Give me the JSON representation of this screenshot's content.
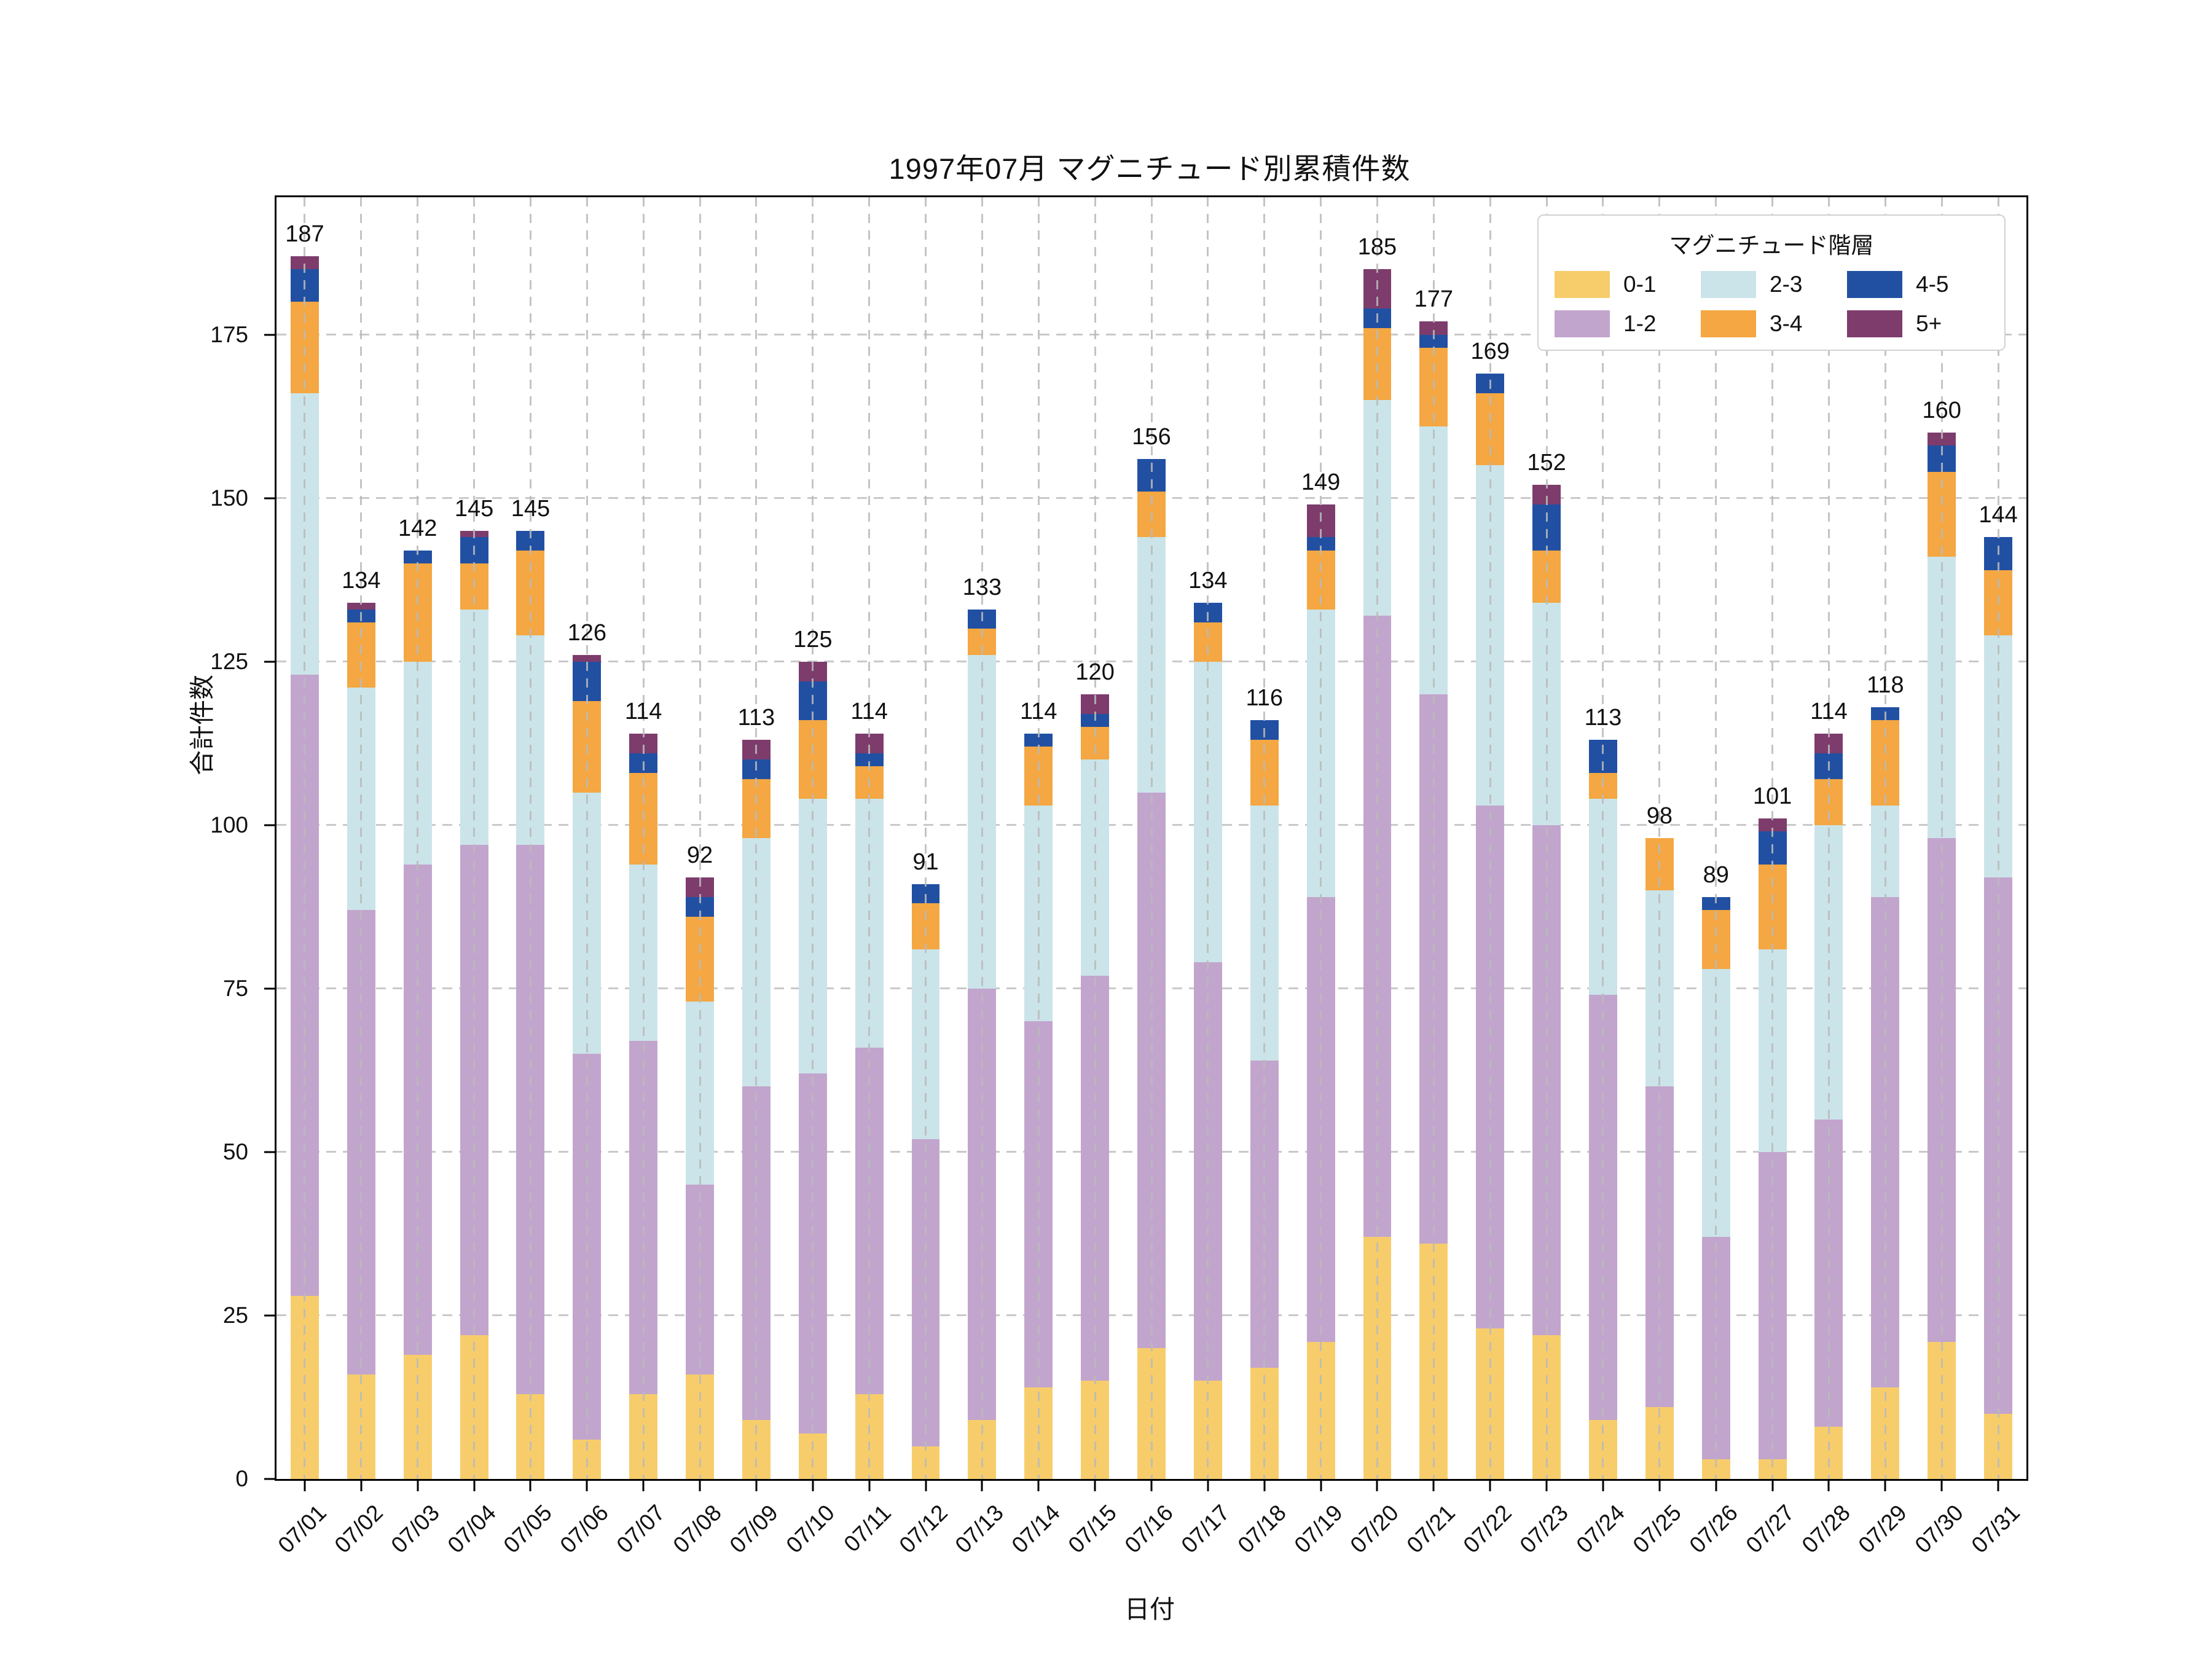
{
  "title": "1997年07月 マグニチュード別累積件数",
  "chart_data": {
    "type": "bar",
    "stacked": true,
    "title": "1997年07月 マグニチュード別累積件数",
    "xlabel": "日付",
    "ylabel": "合計件数",
    "ylim": [
      0,
      196
    ],
    "yticks": [
      0,
      25,
      50,
      75,
      100,
      125,
      150,
      175
    ],
    "grid": true,
    "legend_title": "マグニチュード階層",
    "legend_position": "upper right",
    "categories": [
      "07/01",
      "07/02",
      "07/03",
      "07/04",
      "07/05",
      "07/06",
      "07/07",
      "07/08",
      "07/09",
      "07/10",
      "07/11",
      "07/12",
      "07/13",
      "07/14",
      "07/15",
      "07/16",
      "07/17",
      "07/18",
      "07/19",
      "07/20",
      "07/21",
      "07/22",
      "07/23",
      "07/24",
      "07/25",
      "07/26",
      "07/27",
      "07/28",
      "07/29",
      "07/30",
      "07/31"
    ],
    "totals": [
      187,
      134,
      142,
      145,
      145,
      126,
      114,
      92,
      113,
      125,
      114,
      91,
      133,
      114,
      120,
      156,
      134,
      116,
      149,
      185,
      177,
      169,
      152,
      113,
      98,
      89,
      101,
      114,
      118,
      160,
      144
    ],
    "series": [
      {
        "name": "0-1",
        "color": "#F7CD6B",
        "values": [
          28,
          16,
          19,
          22,
          13,
          6,
          13,
          16,
          9,
          7,
          13,
          5,
          9,
          14,
          15,
          20,
          15,
          17,
          21,
          37,
          36,
          23,
          22,
          9,
          11,
          3,
          3,
          8,
          14,
          21,
          10
        ]
      },
      {
        "name": "1-2",
        "color": "#C2A5CD",
        "values": [
          95,
          71,
          75,
          75,
          84,
          59,
          54,
          29,
          51,
          55,
          53,
          47,
          66,
          56,
          62,
          85,
          64,
          47,
          68,
          95,
          84,
          80,
          78,
          65,
          49,
          34,
          47,
          47,
          75,
          77,
          82
        ]
      },
      {
        "name": "2-3",
        "color": "#CBE4E9",
        "values": [
          43,
          34,
          31,
          36,
          32,
          40,
          27,
          28,
          38,
          42,
          38,
          29,
          51,
          33,
          33,
          39,
          46,
          39,
          44,
          33,
          41,
          52,
          34,
          30,
          30,
          41,
          31,
          45,
          14,
          43,
          37
        ]
      },
      {
        "name": "3-4",
        "color": "#F4A742",
        "values": [
          14,
          10,
          15,
          7,
          13,
          14,
          14,
          13,
          9,
          12,
          5,
          7,
          4,
          9,
          5,
          7,
          6,
          10,
          9,
          11,
          12,
          11,
          8,
          4,
          8,
          9,
          13,
          7,
          13,
          13,
          10
        ]
      },
      {
        "name": "4-5",
        "color": "#2150A3",
        "values": [
          5,
          2,
          2,
          4,
          3,
          6,
          3,
          3,
          3,
          6,
          2,
          3,
          3,
          2,
          2,
          5,
          3,
          3,
          2,
          3,
          2,
          3,
          7,
          5,
          0,
          2,
          5,
          4,
          2,
          4,
          5
        ]
      },
      {
        "name": "5+",
        "color": "#7D3C6C",
        "values": [
          2,
          1,
          0,
          1,
          0,
          1,
          3,
          3,
          3,
          3,
          3,
          0,
          0,
          0,
          3,
          0,
          0,
          0,
          5,
          6,
          2,
          0,
          3,
          0,
          0,
          0,
          2,
          3,
          0,
          2,
          0
        ]
      }
    ]
  }
}
